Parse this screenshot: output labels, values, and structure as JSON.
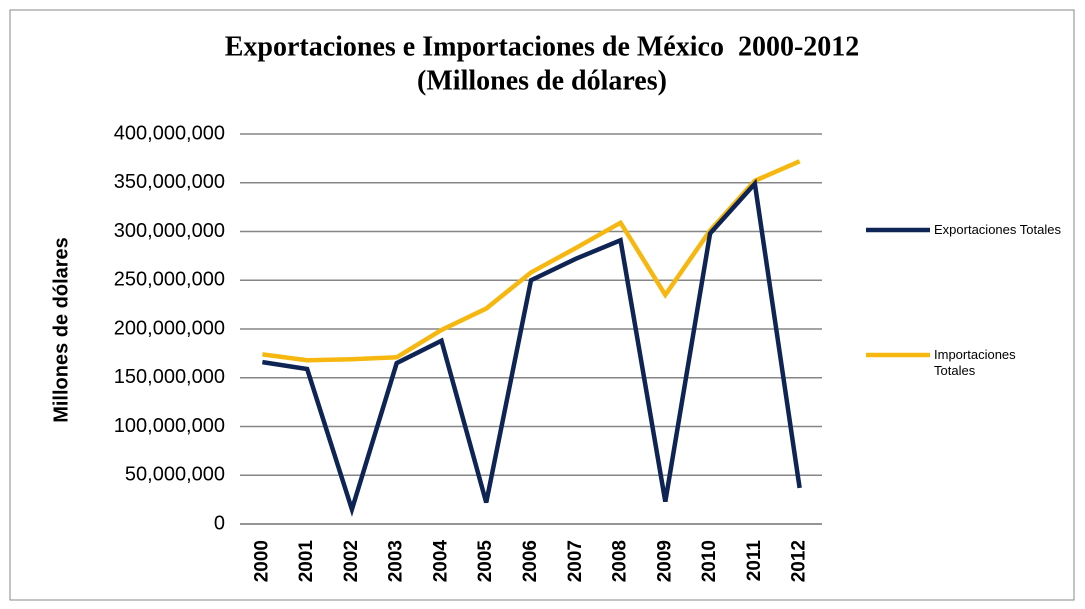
{
  "chart_data": {
    "type": "line",
    "title": "Exportaciones e Importaciones de México  2000-2012",
    "subtitle": "(Millones de dólares)",
    "y_label": "Millones de dólares",
    "categories": [
      "2000",
      "2001",
      "2002",
      "2003",
      "2004",
      "2005",
      "2006",
      "2007",
      "2008",
      "2009",
      "2010",
      "2011",
      "2012"
    ],
    "series": [
      {
        "name": "Exportaciones Totales",
        "color": "#0e2454",
        "values": [
          166000000,
          159000000,
          15000000,
          165000000,
          188000000,
          22000000,
          250000000,
          272000000,
          291000000,
          23000000,
          298000000,
          349000000,
          37000000
        ]
      },
      {
        "name": "Importaciones Totales",
        "color": "#f6b810",
        "values": [
          174000000,
          168000000,
          169000000,
          171000000,
          199000000,
          221000000,
          258000000,
          283000000,
          309000000,
          235000000,
          301000000,
          352000000,
          372000000
        ]
      }
    ],
    "ylim": [
      0,
      400000000
    ],
    "yticks": [
      0,
      {
        "value": 50000000,
        "label": "50,000,000"
      },
      {
        "value": 100000000,
        "label": "100,000,000"
      },
      {
        "value": 150000000,
        "label": "150,000,000"
      },
      {
        "value": 200000000,
        "label": "200,000,000"
      },
      {
        "value": 250000000,
        "label": "250,000,000"
      },
      {
        "value": 300000000,
        "label": "300,000,000"
      },
      {
        "value": 350000000,
        "label": "350,000,000"
      },
      {
        "value": 400000000,
        "label": "400,000,000"
      }
    ],
    "grid": true,
    "legend": "right"
  }
}
